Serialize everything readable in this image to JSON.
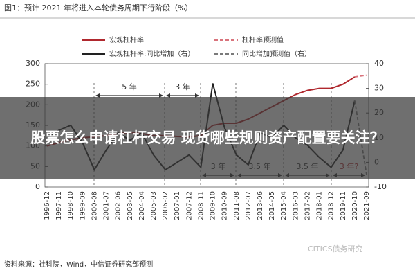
{
  "chart_data": {
    "type": "line",
    "title": "图1：预计 2021 年将进入本轮债务周期下行阶段（%）",
    "categories": [
      "1996-12",
      "1997-11",
      "1998-10",
      "1999-09",
      "2000-08",
      "2001-07",
      "2002-06",
      "2003-05",
      "2004-04",
      "2005-03",
      "2006-02",
      "2007-01",
      "2007-12",
      "2008-11",
      "2009-10",
      "2010-09",
      "2011-08",
      "2012-07",
      "2013-06",
      "2014-05",
      "2015-04",
      "2016-03",
      "2017-02",
      "2018-01",
      "2018-12",
      "2019-11",
      "2020-10",
      "2021-09"
    ],
    "series": [
      {
        "name": "宏观杠杆率",
        "color": "#b0282e",
        "dashed": false,
        "values": [
          100,
          108,
          115,
          120,
          122,
          125,
          130,
          133,
          130,
          125,
          125,
          123,
          122,
          125,
          150,
          155,
          155,
          165,
          180,
          195,
          210,
          225,
          235,
          240,
          240,
          250,
          268,
          null
        ]
      },
      {
        "name": "杠杆率预测值",
        "color": "#d9737c",
        "dashed": true,
        "values": [
          null,
          null,
          null,
          null,
          null,
          null,
          null,
          null,
          null,
          null,
          null,
          null,
          null,
          null,
          null,
          null,
          null,
          null,
          null,
          null,
          null,
          null,
          null,
          null,
          null,
          null,
          268,
          272
        ]
      },
      {
        "name": "宏观杠杆率:同比增加（右）",
        "color": "#222222",
        "dashed": false,
        "axis": "y2",
        "values": [
          10,
          13,
          15,
          8,
          -3,
          5,
          12,
          9,
          12,
          3,
          -3,
          0,
          3,
          -2,
          32,
          14,
          3,
          -1,
          12,
          10,
          15,
          10,
          7,
          2,
          -2,
          5,
          25,
          null
        ]
      },
      {
        "name": "同比增加预测值（右）",
        "color": "#7a7a7a",
        "dashed": true,
        "axis": "y2",
        "values": [
          null,
          null,
          null,
          null,
          null,
          null,
          null,
          null,
          null,
          null,
          null,
          null,
          null,
          null,
          null,
          null,
          null,
          null,
          null,
          null,
          null,
          null,
          null,
          null,
          null,
          null,
          25,
          -5
        ]
      }
    ],
    "ylim": [
      0,
      300
    ],
    "yticks": [
      0,
      50,
      100,
      150,
      200,
      250,
      300
    ],
    "y2lim": [
      -10,
      40
    ],
    "y2ticks": [
      -10,
      0,
      10,
      20,
      30,
      40
    ],
    "annotations": [
      "5 年",
      "3 年",
      "3 年",
      "3.5 年",
      "3.5 年",
      "3 年?"
    ],
    "source": "资料来源：社科院，Wind，中信证券研究部预测",
    "watermark": "CITICS债务研究",
    "overlay_text": "股票怎么申请杠杆交易 现货哪些规则资产配置要关注？"
  }
}
